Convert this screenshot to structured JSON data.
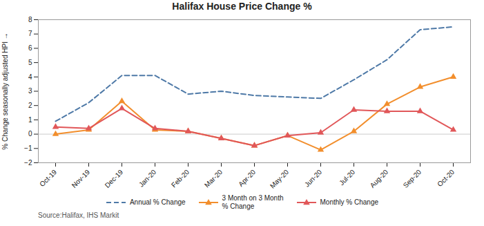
{
  "chart_data": {
    "type": "line",
    "title": "Halifax House Price Change %",
    "ylabel": "% Change seasonally adjusted HPI",
    "annotations": [
      "Source:Halifax, IHS Markit"
    ],
    "categories": [
      "Oct-19",
      "Nov-19",
      "Dec-19",
      "Jan-20",
      "Feb-20",
      "Mar-20",
      "Apr-20",
      "May-20",
      "Jun-20",
      "Jul-20",
      "Aug-20",
      "Sep-20",
      "Oct-20"
    ],
    "series": [
      {
        "name": "Annual % Change",
        "values": [
          0.9,
          2.2,
          4.1,
          4.1,
          2.8,
          3.0,
          2.7,
          2.6,
          2.5,
          3.8,
          5.2,
          7.3,
          7.5
        ],
        "line_style": "dashed",
        "marker": "none"
      },
      {
        "name": "3 Month on 3 Month\n% Change",
        "values": [
          0.0,
          0.3,
          2.3,
          0.3,
          0.2,
          -0.3,
          -0.8,
          -0.1,
          -1.1,
          0.2,
          2.1,
          3.3,
          4.0
        ],
        "line_style": "solid",
        "marker": "triangle"
      },
      {
        "name": "Monthly % Change",
        "values": [
          0.5,
          0.4,
          1.8,
          0.4,
          0.2,
          -0.3,
          -0.8,
          -0.1,
          0.1,
          1.7,
          1.6,
          1.6,
          0.3
        ],
        "line_style": "solid",
        "marker": "triangle"
      }
    ],
    "ylim": [
      -2.0,
      8.0
    ],
    "yticks": [
      -2.0,
      -1.0,
      0.0,
      1.0,
      2.0,
      3.0,
      4.0,
      5.0,
      6.0,
      7.0,
      8.0
    ],
    "grid": false,
    "legend": "bottom"
  }
}
